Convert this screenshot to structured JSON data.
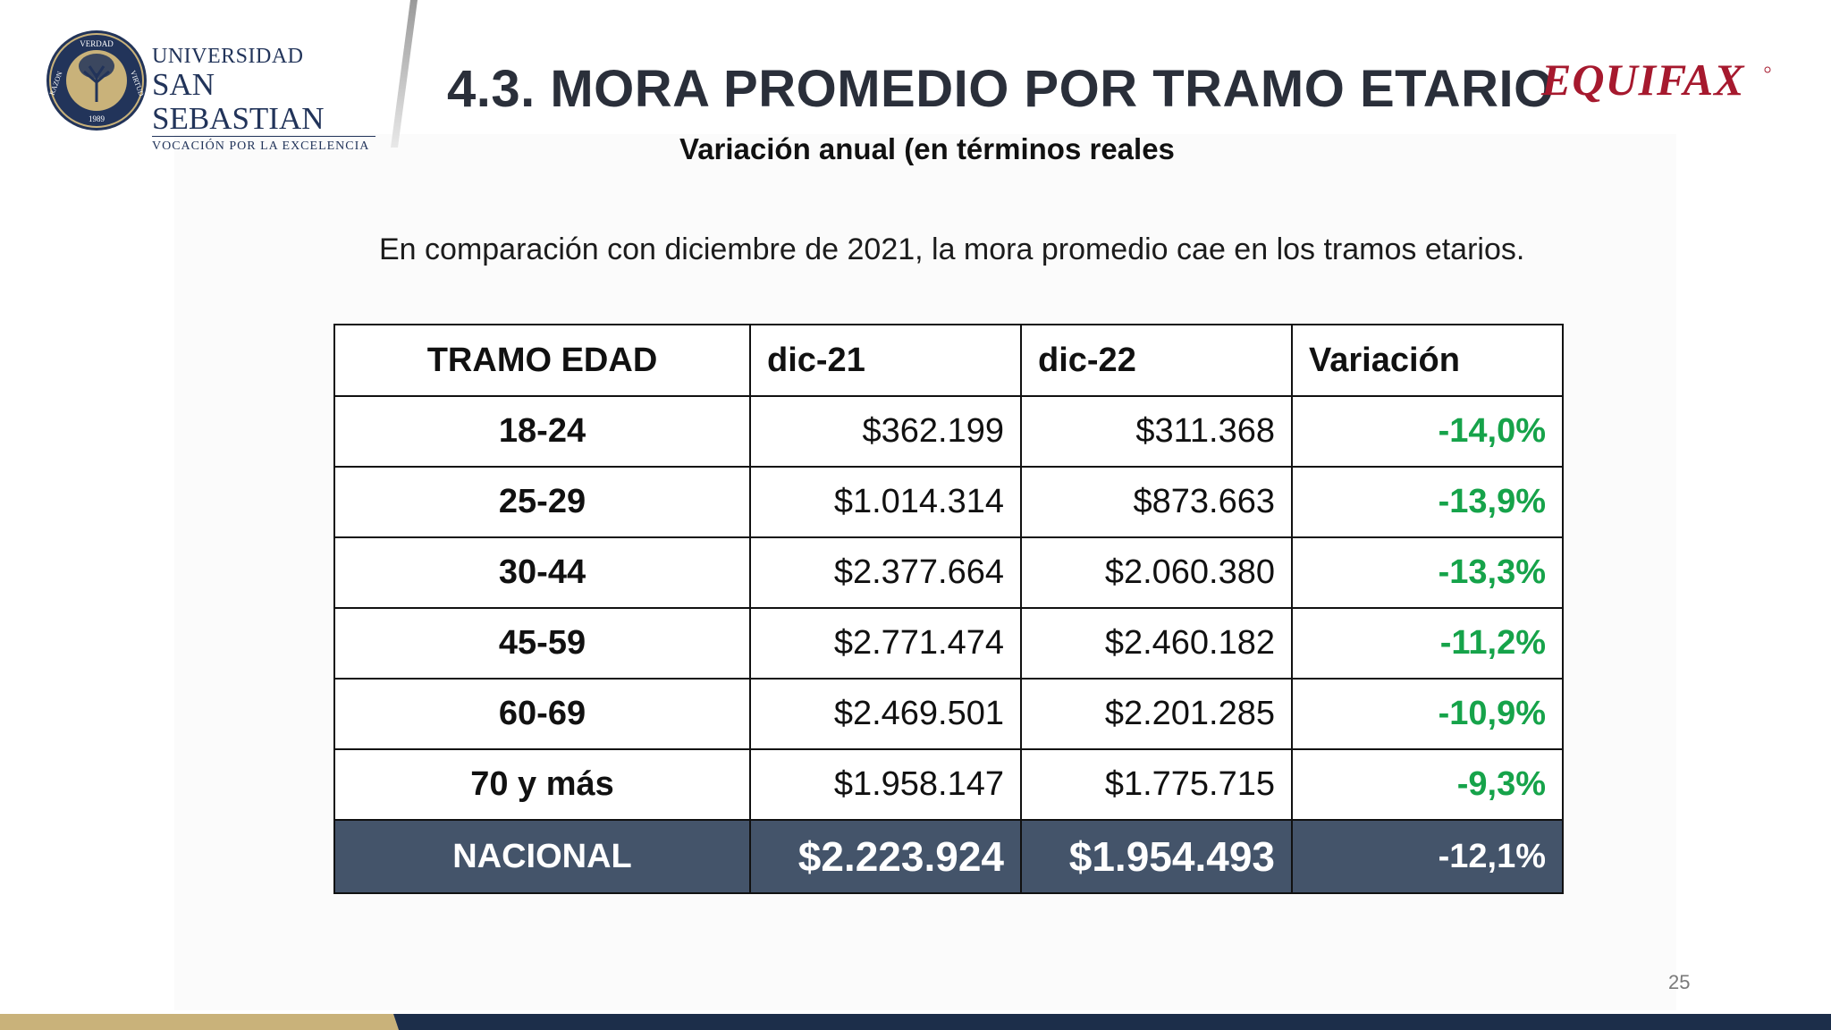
{
  "header": {
    "logo_universidad": {
      "line1": "UNIVERSIDAD",
      "line2": "SAN SEBASTIAN",
      "line3": "VOCACIÓN POR LA EXCELENCIA",
      "seal_words": [
        "VERDAD",
        "RAZON",
        "VIRTUD",
        "1989"
      ]
    },
    "title": "4.3. MORA PROMEDIO POR TRAMO ETARIO",
    "subtitle": "Variación anual (en términos reales",
    "logo_equifax": "EQUIFAX"
  },
  "intro": "En comparación con diciembre de 2021, la mora promedio cae en los tramos etarios.",
  "table": {
    "headers": [
      "TRAMO EDAD",
      "dic-21",
      "dic-22",
      "Variación"
    ],
    "rows": [
      {
        "tramo": "18-24",
        "dic21": "$362.199",
        "dic22": "$311.368",
        "variacion": "-14,0%"
      },
      {
        "tramo": "25-29",
        "dic21": "$1.014.314",
        "dic22": "$873.663",
        "variacion": "-13,9%"
      },
      {
        "tramo": "30-44",
        "dic21": "$2.377.664",
        "dic22": "$2.060.380",
        "variacion": "-13,3%"
      },
      {
        "tramo": "45-59",
        "dic21": "$2.771.474",
        "dic22": "$2.460.182",
        "variacion": "-11,2%"
      },
      {
        "tramo": "60-69",
        "dic21": "$2.469.501",
        "dic22": "$2.201.285",
        "variacion": "-10,9%"
      },
      {
        "tramo": "70 y más",
        "dic21": "$1.958.147",
        "dic22": "$1.775.715",
        "variacion": "-9,3%"
      }
    ],
    "total": {
      "tramo": "NACIONAL",
      "dic21": "$2.223.924",
      "dic22": "$1.954.493",
      "variacion": "-12,1%"
    }
  },
  "page_number": "25",
  "colors": {
    "title": "#2a2f3a",
    "positive_variation": "#16a34a",
    "total_row_bg": "#44546a",
    "brand_navy": "#22345a",
    "brand_gold": "#c9b27a",
    "equifax_red": "#a6192e"
  }
}
